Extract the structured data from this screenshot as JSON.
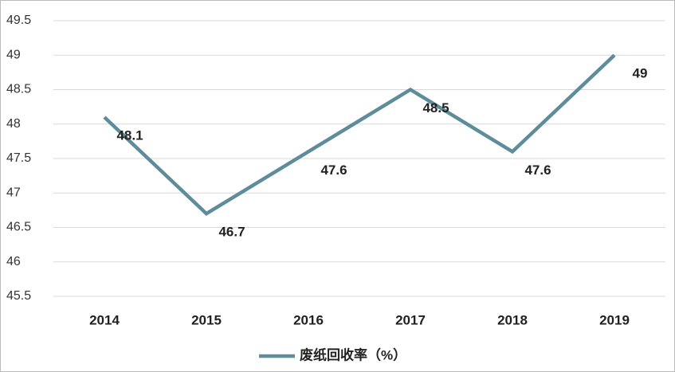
{
  "chart_data": {
    "type": "line",
    "categories": [
      "2014",
      "2015",
      "2016",
      "2017",
      "2018",
      "2019"
    ],
    "series": [
      {
        "name": "废纸回收率（%）",
        "color": "#5e8c9b",
        "values": [
          48.1,
          46.7,
          47.6,
          48.5,
          47.6,
          49
        ]
      }
    ],
    "ylim": [
      45.5,
      49.5
    ],
    "yticks": [
      45.5,
      46,
      46.5,
      47,
      47.5,
      48,
      48.5,
      49,
      49.5
    ],
    "grid": true
  }
}
